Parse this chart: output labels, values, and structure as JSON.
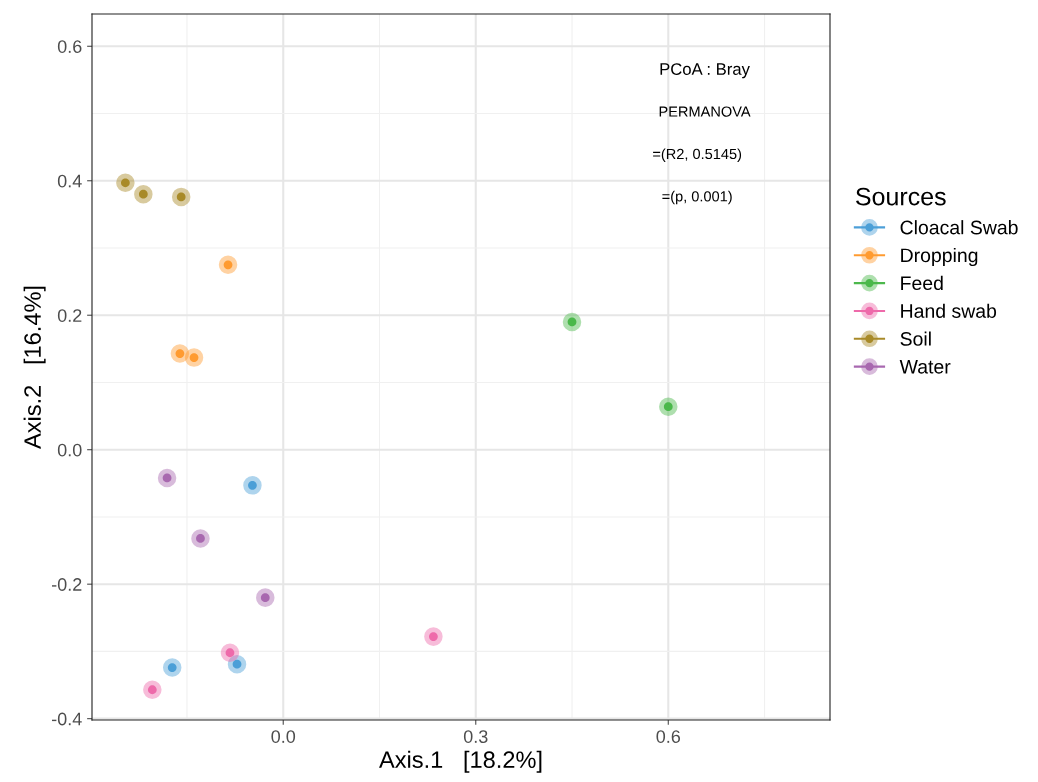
{
  "chart_data": {
    "type": "scatter",
    "xlabel": "Axis.1   [18.2%]",
    "ylabel": "Axis.2   [16.4%]",
    "legend_title": "Sources",
    "legend": "right",
    "grid": true,
    "marker": "circle",
    "xlim": [
      -0.298,
      0.852
    ],
    "ylim": [
      -0.402,
      0.648
    ],
    "xticks": [
      {
        "value": 0.0,
        "label": "0.0"
      },
      0.3,
      0.6
    ],
    "yticks": [
      -0.4,
      -0.2,
      {
        "value": 0.0,
        "label": "0.0"
      },
      0.2,
      0.4,
      0.6
    ],
    "annotations": [
      "PCoA : Bray",
      "PERMANOVA",
      "=(R2, 0.5145)",
      "=(p, 0.001)"
    ],
    "series": [
      {
        "name": "Cloacal Swab",
        "color": "#4c9fd8",
        "x": [
          -0.048,
          -0.173,
          -0.072
        ],
        "values": [
          -0.053,
          -0.324,
          -0.319
        ]
      },
      {
        "name": "Dropping",
        "color": "#ff9b30",
        "x": [
          -0.086,
          -0.161,
          -0.139
        ],
        "values": [
          0.275,
          0.143,
          0.137
        ]
      },
      {
        "name": "Feed",
        "color": "#4cb84c",
        "x": [
          0.45,
          0.6
        ],
        "values": [
          0.19,
          0.064
        ]
      },
      {
        "name": "Hand swab",
        "color": "#ee6aaa",
        "x": [
          -0.204,
          -0.083,
          0.234
        ],
        "values": [
          -0.357,
          -0.302,
          -0.278
        ]
      },
      {
        "name": "Soil",
        "color": "#a88a28",
        "x": [
          -0.246,
          -0.218,
          -0.159
        ],
        "values": [
          0.397,
          0.38,
          0.376
        ]
      },
      {
        "name": "Water",
        "color": "#a868b0",
        "x": [
          -0.181,
          -0.129,
          -0.028
        ],
        "values": [
          -0.042,
          -0.132,
          -0.22
        ]
      }
    ]
  }
}
